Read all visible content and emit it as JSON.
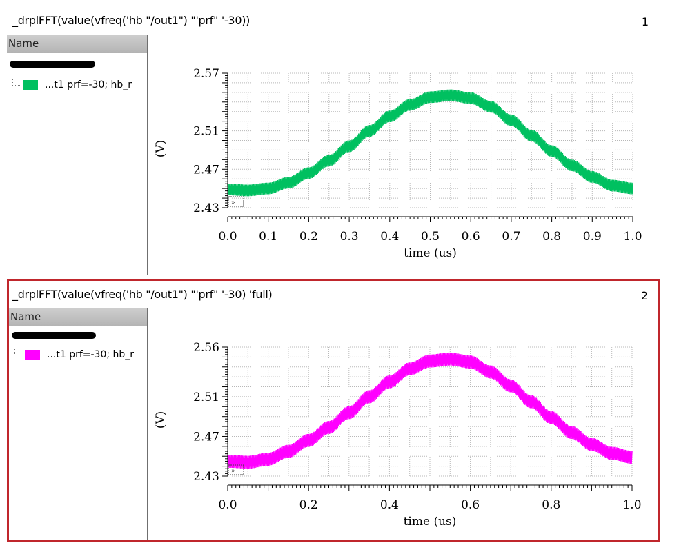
{
  "panels": [
    {
      "title": "_drplFFT(value(vfreq('hb \"/out1\") \"'prf\" '-30))",
      "number": "1",
      "legend_header": "Name",
      "legend_item": "...t1 prf=-30; hb_r",
      "color": "#00c060"
    },
    {
      "title": "_drplFFT(value(vfreq('hb \"/out1\") \"'prf\" '-30) 'full)",
      "number": "2",
      "legend_header": "Name",
      "legend_item": "...t1 prf=-30; hb_r",
      "color": "#ff00ff"
    }
  ],
  "chart_data": [
    {
      "type": "line",
      "xlabel": "time (us)",
      "ylabel": "(V)",
      "xlim": [
        0.0,
        1.0
      ],
      "ylim": [
        2.43,
        2.57
      ],
      "yticks": [
        "2.57",
        "2.51",
        "2.47",
        "2.43"
      ],
      "ytick_values": [
        2.57,
        2.51,
        2.47,
        2.43
      ],
      "xticks": [
        "0.0",
        "0.1",
        "0.2",
        "0.3",
        "0.4",
        "0.5",
        "0.6",
        "0.7",
        "0.8",
        "0.9",
        "1.0"
      ],
      "xtick_values": [
        0.0,
        0.1,
        0.2,
        0.3,
        0.4,
        0.5,
        0.6,
        0.7,
        0.8,
        0.9,
        1.0
      ],
      "grid": true,
      "series": [
        {
          "color": "#00c060",
          "ripple": 0.006,
          "x": [
            0.0,
            0.05,
            0.1,
            0.15,
            0.2,
            0.25,
            0.3,
            0.35,
            0.4,
            0.45,
            0.5,
            0.55,
            0.6,
            0.65,
            0.7,
            0.75,
            0.8,
            0.85,
            0.9,
            0.95,
            1.0
          ],
          "y": [
            2.449,
            2.448,
            2.45,
            2.456,
            2.466,
            2.479,
            2.494,
            2.51,
            2.525,
            2.537,
            2.545,
            2.547,
            2.544,
            2.535,
            2.521,
            2.505,
            2.489,
            2.474,
            2.462,
            2.453,
            2.45
          ]
        }
      ]
    },
    {
      "type": "line",
      "xlabel": "time (us)",
      "ylabel": "(V)",
      "xlim": [
        0.0,
        1.0
      ],
      "ylim": [
        2.43,
        2.56
      ],
      "yticks": [
        "2.56",
        "2.51",
        "2.47",
        "2.43"
      ],
      "ytick_values": [
        2.56,
        2.51,
        2.47,
        2.43
      ],
      "xticks": [
        "0.0",
        "0.2",
        "0.4",
        "0.6",
        "0.8",
        "1.0"
      ],
      "xtick_values": [
        0.0,
        0.2,
        0.4,
        0.6,
        0.8,
        1.0
      ],
      "grid": true,
      "series": [
        {
          "color": "#ff00ff",
          "ripple": 0.0065,
          "x": [
            0.0,
            0.05,
            0.1,
            0.15,
            0.2,
            0.25,
            0.3,
            0.35,
            0.4,
            0.45,
            0.5,
            0.55,
            0.6,
            0.65,
            0.7,
            0.75,
            0.8,
            0.85,
            0.9,
            0.95,
            1.0
          ],
          "y": [
            2.445,
            2.444,
            2.447,
            2.455,
            2.466,
            2.479,
            2.494,
            2.51,
            2.525,
            2.538,
            2.546,
            2.548,
            2.545,
            2.535,
            2.521,
            2.505,
            2.489,
            2.474,
            2.462,
            2.453,
            2.449
          ]
        }
      ]
    }
  ]
}
